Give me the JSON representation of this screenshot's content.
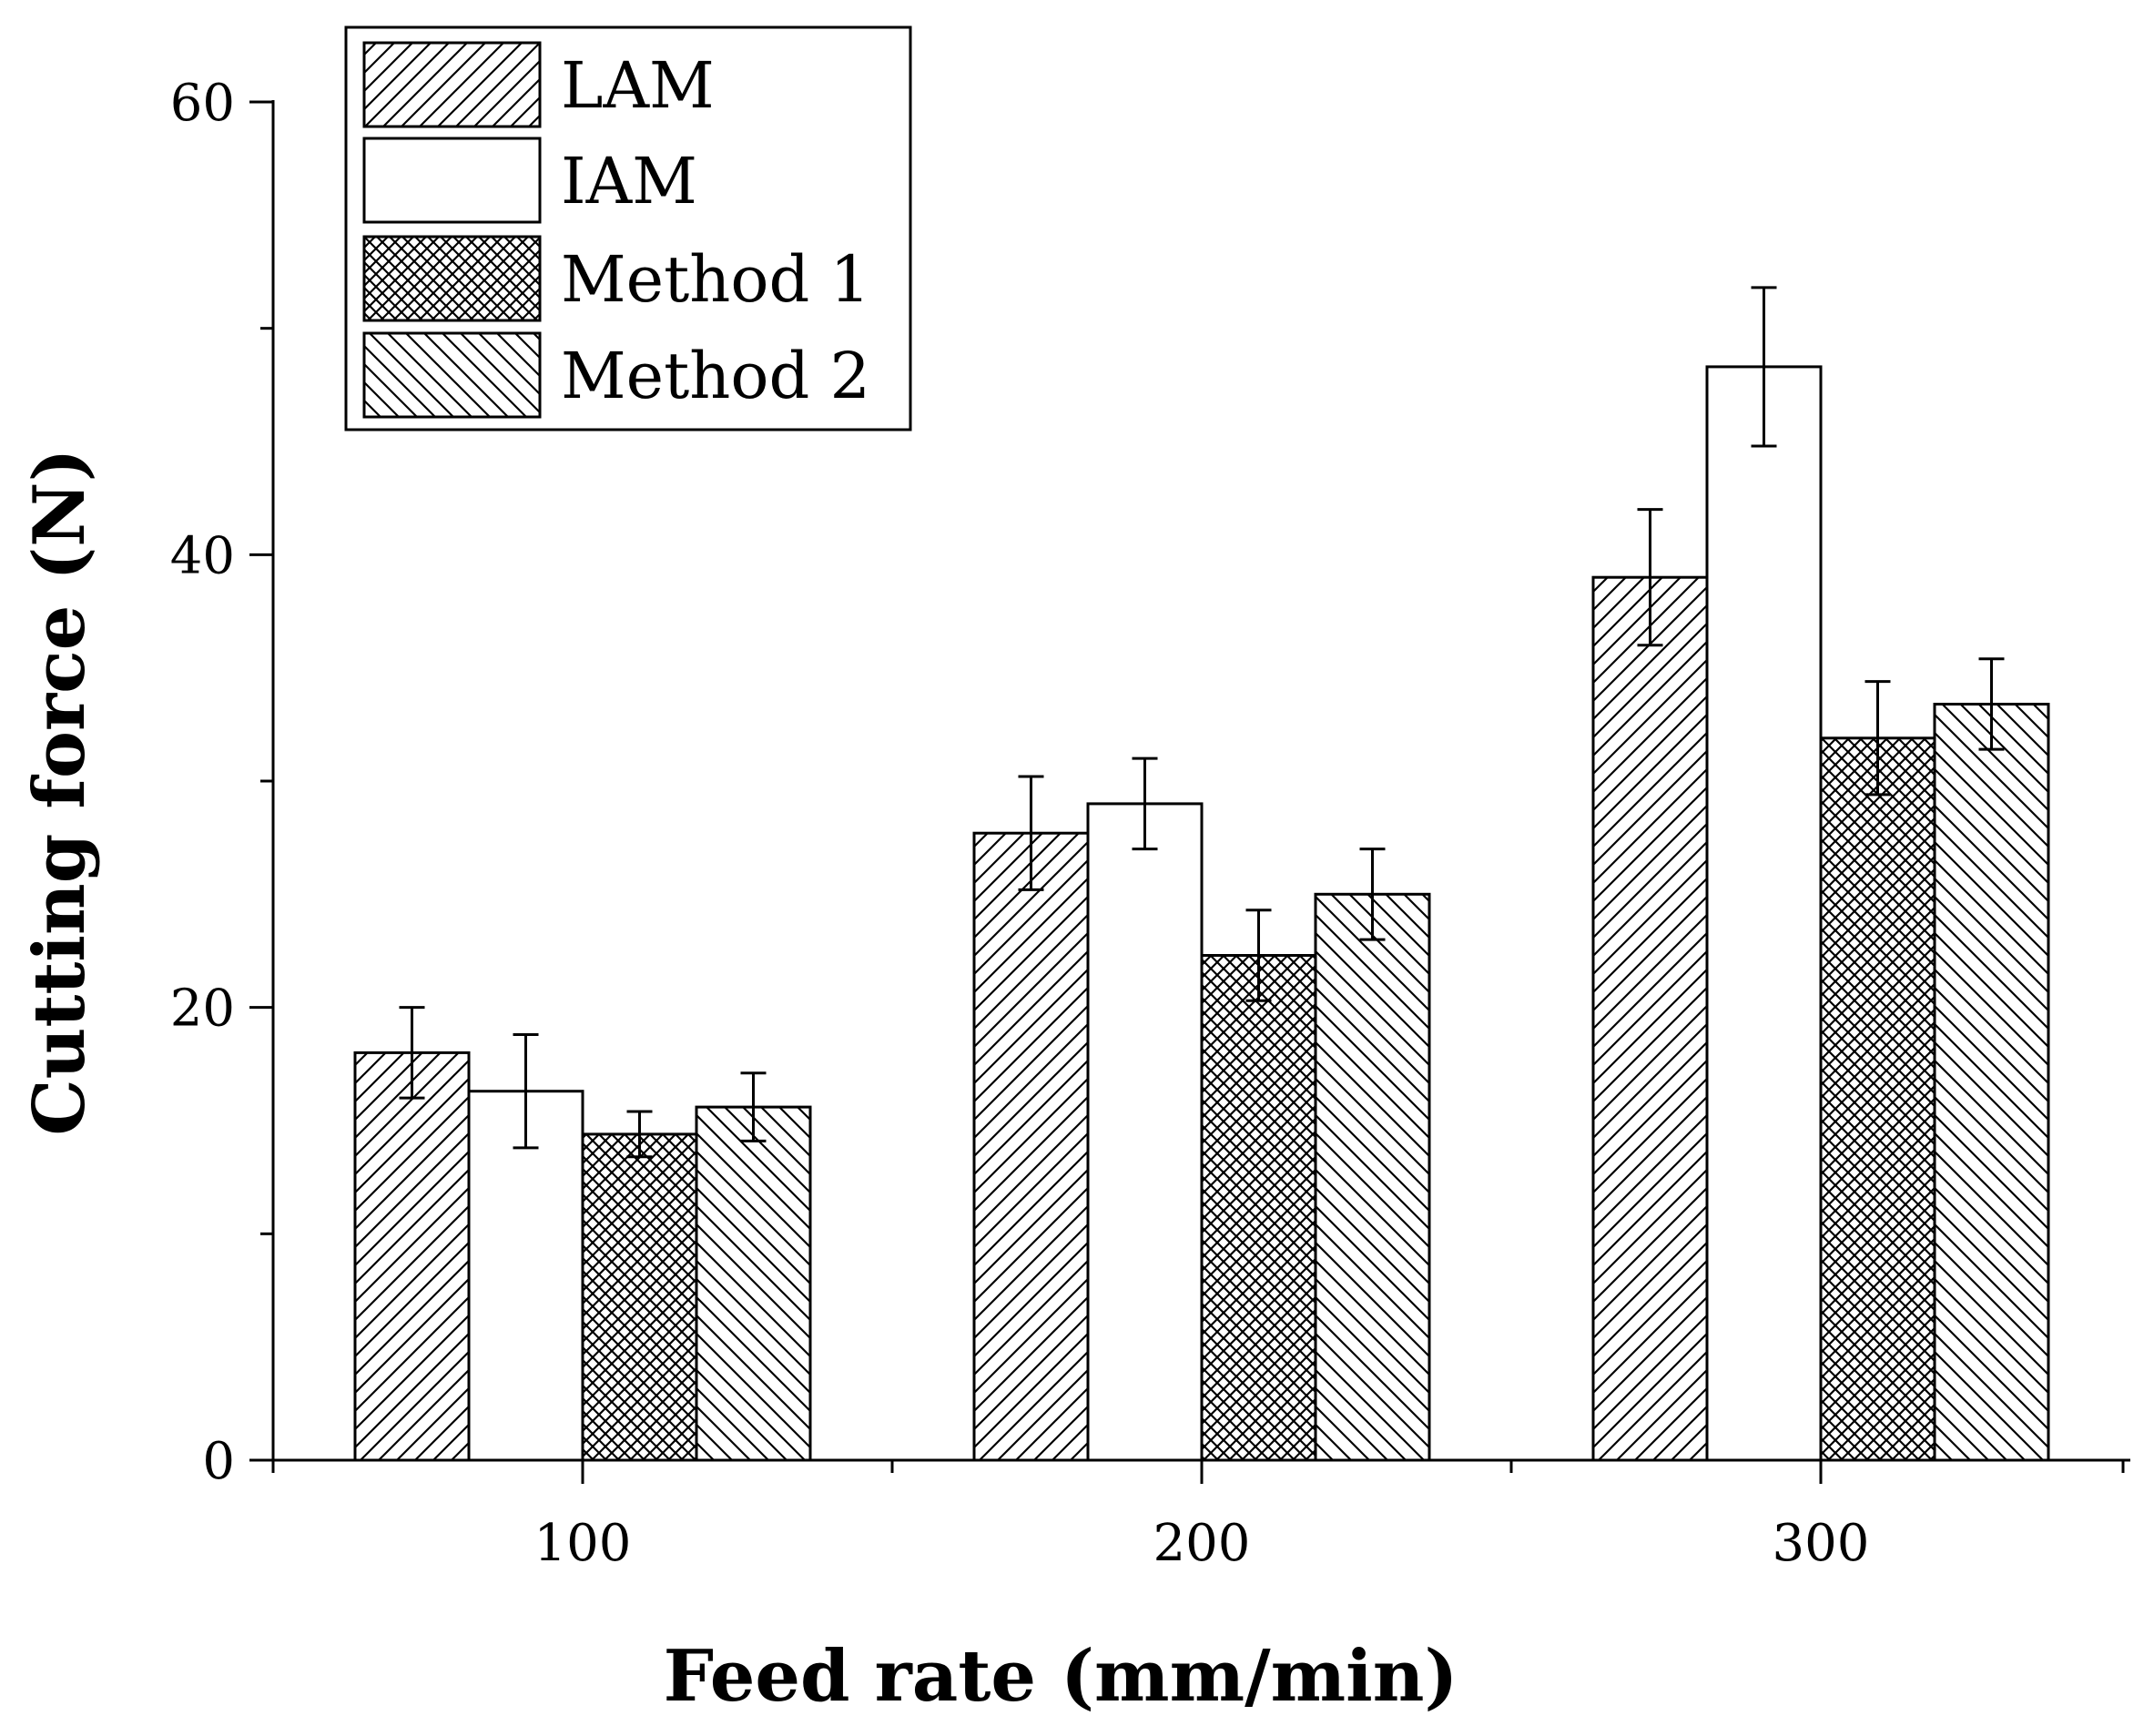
{
  "chart_data": {
    "type": "bar",
    "title": "",
    "xlabel": "Feed rate (mm/min)",
    "ylabel": "Cutting force (N)",
    "categories": [
      "100",
      "200",
      "300"
    ],
    "ylim": [
      0,
      60
    ],
    "yticks": [
      0,
      20,
      40,
      60
    ],
    "grid": false,
    "legend_position": "top-left",
    "series": [
      {
        "name": "LAM",
        "pattern": "hatch-forward",
        "values": [
          18.0,
          27.7,
          39.0
        ],
        "errors": [
          2.0,
          2.5,
          3.0
        ]
      },
      {
        "name": "IAM",
        "pattern": "none",
        "values": [
          16.3,
          29.0,
          48.3
        ],
        "errors": [
          2.5,
          2.0,
          3.5
        ]
      },
      {
        "name": "Method 1",
        "pattern": "crosshatch",
        "values": [
          14.4,
          22.3,
          31.9
        ],
        "errors": [
          1.0,
          2.0,
          2.5
        ]
      },
      {
        "name": "Method 2",
        "pattern": "hatch-backward",
        "values": [
          15.6,
          25.0,
          33.4
        ],
        "errors": [
          1.5,
          2.0,
          2.0
        ]
      }
    ],
    "colors": {
      "stroke": "#000000",
      "fill": "#ffffff"
    }
  }
}
